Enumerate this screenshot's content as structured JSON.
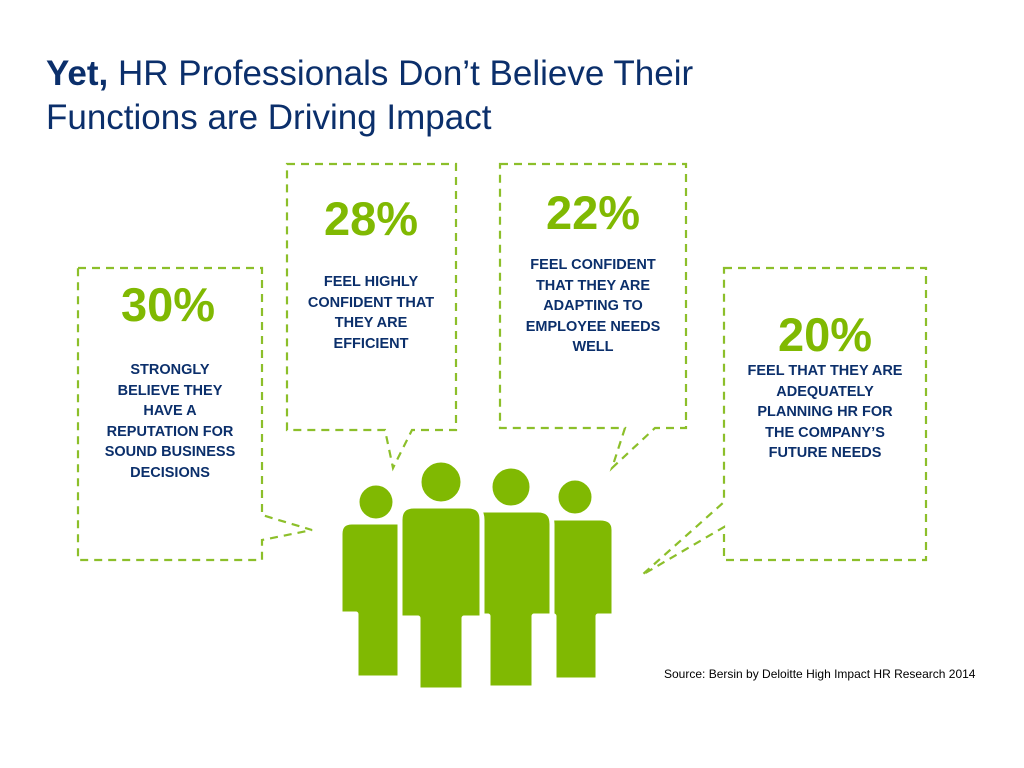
{
  "title": {
    "emphasis": "Yet,",
    "line1_rest": " HR Professionals Don’t Believe Their",
    "line2": "Functions are Driving Impact"
  },
  "stats": [
    {
      "value": "30%",
      "lines": [
        "STRONGLY",
        "BELIEVE THEY",
        "HAVE A",
        "REPUTATION FOR",
        "SOUND BUSINESS",
        "DECISIONS"
      ]
    },
    {
      "value": "28%",
      "lines": [
        "FEEL HIGHLY",
        "CONFIDENT THAT",
        "THEY ARE",
        "EFFICIENT"
      ]
    },
    {
      "value": "22%",
      "lines": [
        "FEEL CONFIDENT",
        "THAT THEY ARE",
        "ADAPTING TO",
        "EMPLOYEE NEEDS",
        "WELL"
      ]
    },
    {
      "value": "20%",
      "lines": [
        "FEEL THAT THEY ARE",
        "ADEQUATELY",
        "PLANNING HR FOR",
        "THE COMPANY’S",
        "FUTURE NEEDS"
      ]
    }
  ],
  "source": "Source: Bersin by Deloitte High Impact HR Research 2014",
  "colors": {
    "navy": "#0b2f6b",
    "green": "#80b902",
    "dash_green": "#8cbf2a"
  },
  "icons": [
    "speech-bubble-icon",
    "people-group-icon"
  ]
}
